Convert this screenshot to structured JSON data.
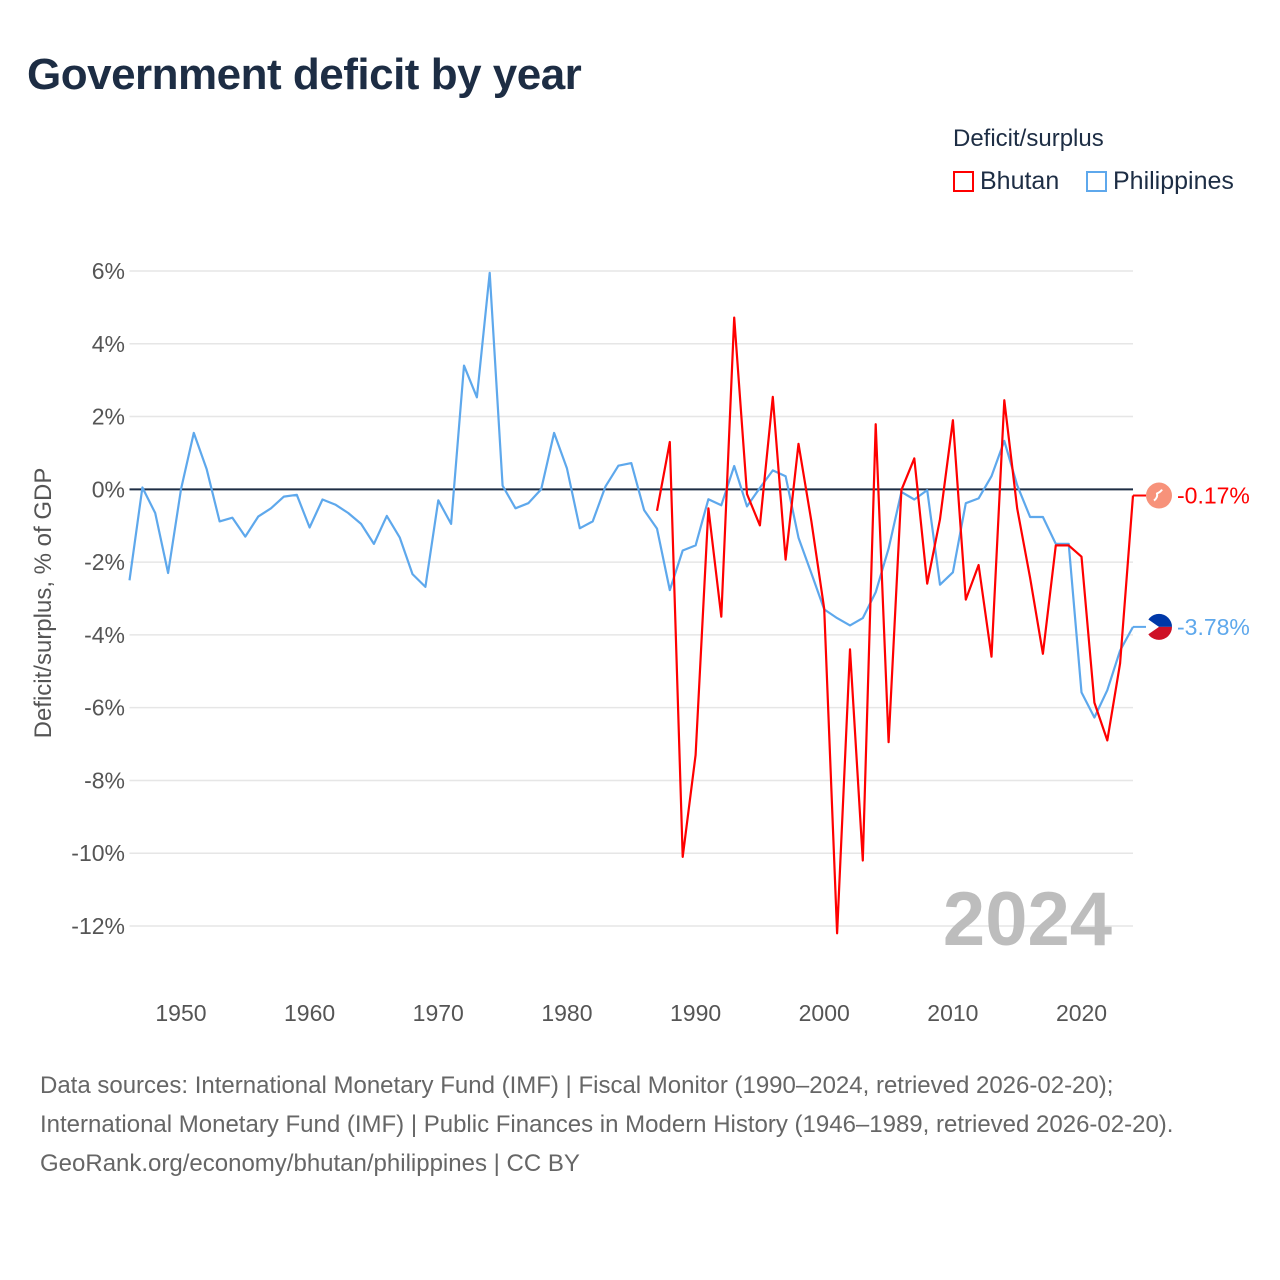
{
  "title": "Government deficit by year",
  "legend": {
    "title": "Deficit/surplus",
    "items": [
      {
        "label": "Bhutan",
        "color": "#ff0000"
      },
      {
        "label": "Philippines",
        "color": "#5ea8ec"
      }
    ]
  },
  "footer": {
    "sources": "Data sources: International Monetary Fund (IMF) | Fiscal Monitor (1990–2024, retrieved 2026-02-20); International Monetary Fund (IMF) | Public Finances in Modern History (1946–1989, retrieved 2026-02-20).",
    "credit": "GeoRank.org/economy/bhutan/philippines | CC BY"
  },
  "chart_data": {
    "type": "line",
    "title": "Government deficit by year",
    "xlabel": "",
    "ylabel": "Deficit/surplus, % of GDP",
    "xlim": [
      1946,
      2024
    ],
    "ylim": [
      -12,
      6
    ],
    "yticks": [
      6,
      4,
      2,
      0,
      -2,
      -4,
      -6,
      -8,
      -10,
      -12
    ],
    "ytick_labels": [
      "6%",
      "4%",
      "2%",
      "0%",
      "-2%",
      "-4%",
      "-6%",
      "-8%",
      "-10%",
      "-12%"
    ],
    "xticks": [
      1950,
      1960,
      1970,
      1980,
      1990,
      2000,
      2010,
      2020
    ],
    "xtick_labels": [
      "1950",
      "1960",
      "1970",
      "1980",
      "1990",
      "2000",
      "2010",
      "2020"
    ],
    "grid": true,
    "year_watermark": "2024",
    "legend_position": "top-right",
    "series": [
      {
        "name": "Bhutan",
        "color": "#ff0000",
        "end_label": "-0.17%",
        "start_year": 1987,
        "values": [
          -0.59,
          1.3,
          -10.1,
          -7.3,
          -0.52,
          -3.5,
          4.72,
          -0.13,
          -0.99,
          2.54,
          -1.93,
          1.25,
          -0.88,
          -3.28,
          -12.2,
          -4.4,
          -10.2,
          1.79,
          -6.95,
          -0.02,
          0.85,
          -2.59,
          -0.82,
          1.9,
          -3.03,
          -2.08,
          -4.6,
          2.45,
          -0.53,
          -2.43,
          -4.52,
          -1.54,
          -1.54,
          -1.85,
          -5.86,
          -6.9,
          -4.78,
          -0.17
        ]
      },
      {
        "name": "Philippines",
        "color": "#5ea8ec",
        "end_label": "-3.78%",
        "start_year": 1946,
        "values": [
          -2.5,
          0.05,
          -0.65,
          -2.3,
          0,
          1.55,
          0.55,
          -0.88,
          -0.78,
          -1.3,
          -0.75,
          -0.52,
          -0.2,
          -0.15,
          -1.05,
          -0.28,
          -0.42,
          -0.65,
          -0.95,
          -1.5,
          -0.73,
          -1.32,
          -2.33,
          -2.68,
          -0.3,
          -0.95,
          3.4,
          2.53,
          5.95,
          0.1,
          -0.52,
          -0.38,
          0,
          1.55,
          0.58,
          -1.07,
          -0.88,
          0.08,
          0.65,
          0.72,
          -0.57,
          -1.08,
          -2.77,
          -1.68,
          -1.54,
          -0.27,
          -0.44,
          0.64,
          -0.47,
          0.04,
          0.52,
          0.36,
          -1.33,
          -2.31,
          -3.3,
          -3.54,
          -3.74,
          -3.54,
          -2.83,
          -1.63,
          -0.07,
          -0.28,
          -0.02,
          -2.62,
          -2.28,
          -0.38,
          -0.25,
          0.36,
          1.33,
          0.11,
          -0.76,
          -0.76,
          -1.5,
          -1.5,
          -5.58,
          -6.27,
          -5.52,
          -4.43,
          -3.78
        ]
      }
    ]
  }
}
